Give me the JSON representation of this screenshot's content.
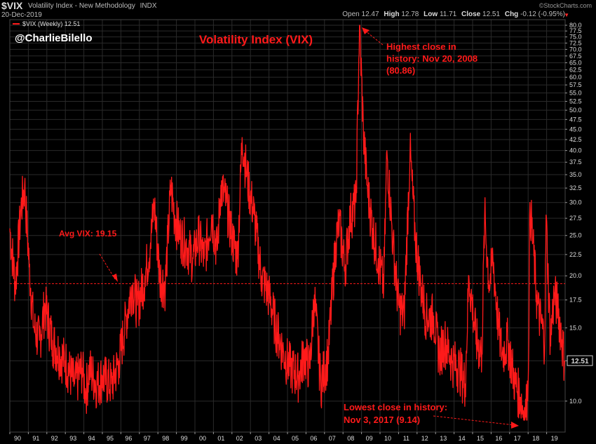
{
  "header": {
    "symbol": "$VIX",
    "description": "Volatility Index - New Methodology",
    "exchange": "INDX",
    "date": "20-Dec-2019",
    "source": "©StockCharts.com",
    "open_label": "Open",
    "open": "12.47",
    "high_label": "High",
    "high": "12.78",
    "low_label": "Low",
    "low": "11.71",
    "close_label": "Close",
    "close": "12.51",
    "chg_label": "Chg",
    "chg": "-0.12 (-0.95%)"
  },
  "legend": {
    "label": "$VIX (Weekly) 12.51"
  },
  "colors": {
    "line": "#ff1a1a",
    "background": "#000000",
    "grid": "#2a2a2a"
  },
  "chart_data": {
    "type": "line",
    "title": "Volatility Index (VIX)",
    "subtitle": "@CharlieBilello",
    "y_scale": "log",
    "ylim": [
      9.0,
      80.0
    ],
    "y_ticks": [
      10.0,
      12.5,
      15.0,
      17.5,
      20.0,
      22.5,
      25.0,
      27.5,
      30.0,
      32.5,
      35.0,
      37.5,
      40.0,
      42.5,
      45.0,
      47.5,
      50.0,
      52.5,
      55.0,
      57.5,
      60.0,
      62.5,
      65.0,
      67.5,
      70.0,
      72.5,
      75.0,
      77.5,
      80.0
    ],
    "x_ticks": [
      "90",
      "91",
      "92",
      "93",
      "94",
      "95",
      "96",
      "97",
      "98",
      "99",
      "00",
      "01",
      "02",
      "03",
      "04",
      "05",
      "06",
      "07",
      "08",
      "09",
      "10",
      "11",
      "12",
      "13",
      "14",
      "15",
      "16",
      "17",
      "18",
      "19"
    ],
    "x_range": [
      1990.0,
      2020.0
    ],
    "average": {
      "value": 19.15,
      "label": "Avg VIX: 19.15"
    },
    "last_value": "12.51",
    "annotations": [
      {
        "text": [
          "Highest close in",
          "history: Nov 20, 2008",
          "(80.86)"
        ],
        "x": 2008.89,
        "y": 80.86
      },
      {
        "text": [
          "Lowest close in history:",
          "Nov 3, 2017 (9.14)"
        ],
        "x": 2017.84,
        "y": 9.14
      }
    ],
    "series": [
      {
        "x": [
          1990.0,
          1990.3,
          1990.6,
          1990.8,
          1991.05,
          1991.3,
          1991.6,
          1991.9,
          1992.3,
          1992.7,
          1993.0,
          1993.5,
          1993.9,
          1994.1,
          1994.3,
          1994.7,
          1995.0,
          1995.5,
          1995.9,
          1996.3,
          1996.6,
          1996.9,
          1997.3,
          1997.6,
          1997.8,
          1998.1,
          1998.4,
          1998.7,
          1998.9,
          1999.2,
          1999.5,
          1999.9,
          2000.2,
          2000.5,
          2000.9,
          2001.2,
          2001.4,
          2001.7,
          2002.0,
          2002.3,
          2002.55,
          2002.8,
          2003.2,
          2003.6,
          2004.0,
          2004.4,
          2004.8,
          2005.2,
          2005.6,
          2005.9,
          2006.2,
          2006.45,
          2006.8,
          2007.2,
          2007.6,
          2007.8,
          2008.1,
          2008.4,
          2008.7,
          2008.89,
          2009.1,
          2009.3,
          2009.6,
          2009.9,
          2010.2,
          2010.37,
          2010.7,
          2011.0,
          2011.3,
          2011.62,
          2011.9,
          2012.2,
          2012.5,
          2012.9,
          2013.2,
          2013.5,
          2013.9,
          2014.3,
          2014.6,
          2014.8,
          2015.2,
          2015.5,
          2015.65,
          2015.9,
          2016.1,
          2016.4,
          2016.6,
          2016.9,
          2017.3,
          2017.6,
          2017.84,
          2018.0,
          2018.1,
          2018.5,
          2018.9,
          2018.97,
          2019.2,
          2019.4,
          2019.6,
          2019.97
        ],
        "y": [
          26,
          19,
          29,
          33,
          21,
          15,
          14,
          17,
          14,
          13,
          12.5,
          11,
          12,
          10.5,
          12,
          11,
          11.5,
          11,
          12.5,
          16,
          19,
          17,
          20,
          24,
          30,
          20,
          19,
          33,
          28,
          25,
          24,
          22,
          25,
          22,
          28,
          23,
          33,
          30,
          25,
          22,
          43,
          35,
          28,
          20,
          18,
          15,
          13,
          12,
          11.5,
          13,
          12,
          18,
          11,
          13,
          24,
          27,
          21,
          28,
          30,
          80.86,
          45,
          33,
          26,
          22,
          19,
          40,
          24,
          17,
          16,
          40,
          25,
          19,
          16,
          16,
          13,
          14,
          12.5,
          12,
          11,
          20,
          14,
          13,
          28,
          19,
          22,
          15,
          13,
          14,
          11,
          10.2,
          9.14,
          11,
          30,
          17,
          14,
          28,
          14,
          18,
          17,
          12.51
        ]
      }
    ]
  }
}
